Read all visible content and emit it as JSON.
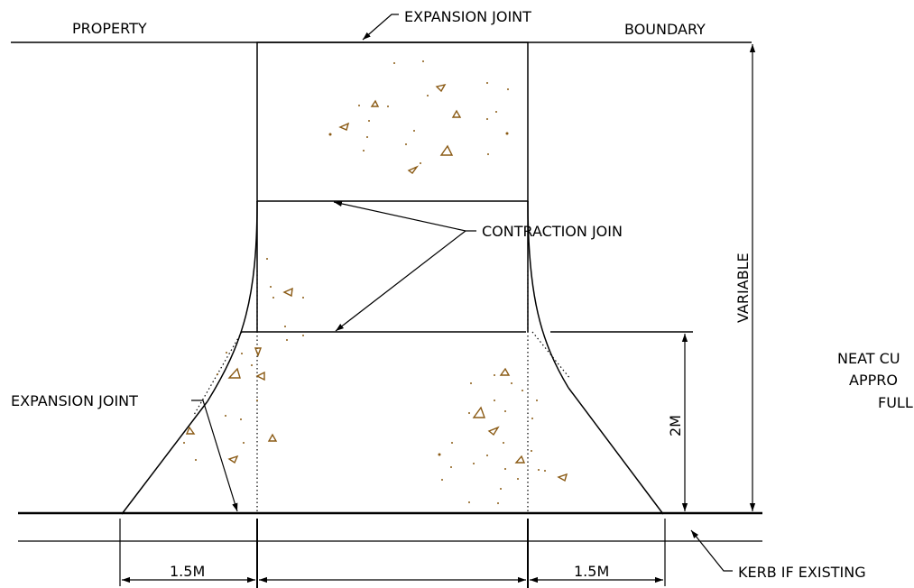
{
  "labels": {
    "property": "PROPERTY",
    "boundary": "BOUNDARY",
    "expansion_joint_top": "EXPANSION JOINT",
    "contraction_join": "CONTRACTION JOIN",
    "variable": "VARIABLE",
    "expansion_joint_left": "EXPANSION JOINT",
    "dim_2m": "2M",
    "dim_left": "1.5M",
    "dim_right": "1.5M",
    "kerb": "KERB IF EXISTING",
    "neat_cut_1": "NEAT CU",
    "neat_cut_2": "APPRO",
    "neat_cut_3": "FULL"
  },
  "colors": {
    "line": "#000000",
    "aggregate": "#8a5a14",
    "background": "#ffffff"
  }
}
